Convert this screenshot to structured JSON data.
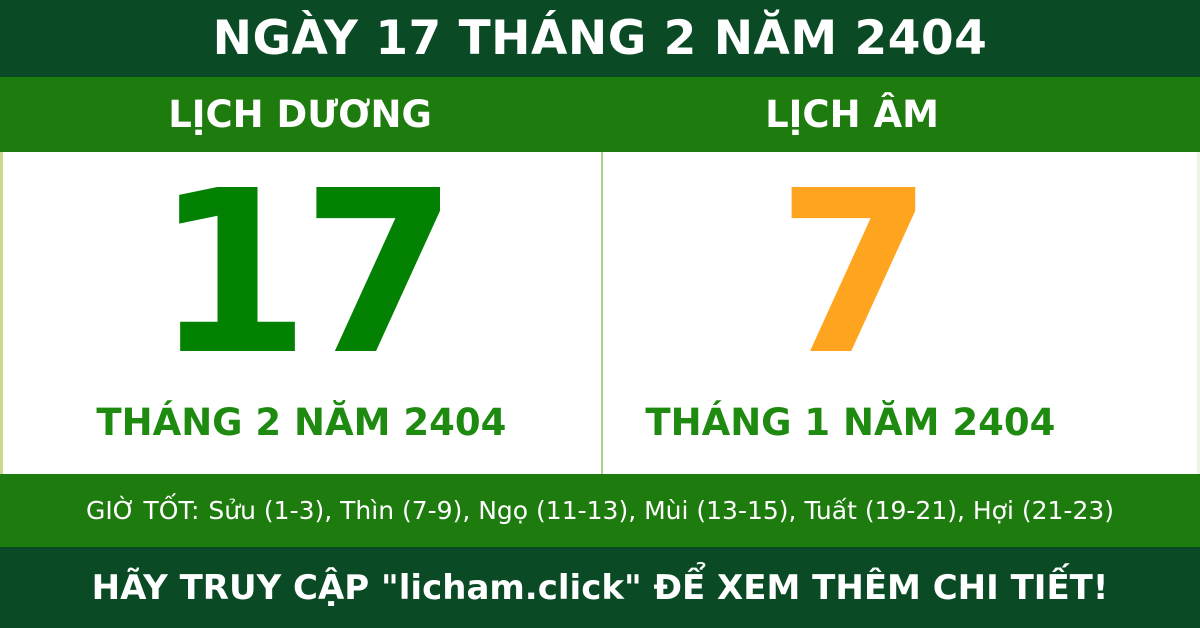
{
  "header": {
    "title": "NGÀY 17 THÁNG 2 NĂM 2404"
  },
  "solar": {
    "label": "LỊCH DƯƠNG",
    "day": "17",
    "month_year": "THÁNG 2 NĂM 2404"
  },
  "lunar": {
    "label": "LỊCH ÂM",
    "day": "7",
    "month_year": "THÁNG 1 NĂM 2404"
  },
  "good_hours": {
    "label": "GIỜ TỐT:",
    "hours": "Sửu (1-3), Thìn (7-9), Ngọ (11-13), Mùi (13-15), Tuất (19-21), Hợi (21-23)"
  },
  "footer": {
    "text": "HÃY TRUY CẬP \"licham.click\" ĐỂ XEM THÊM CHI TIẾT!"
  },
  "colors": {
    "dark_green_bar": "#0a4a25",
    "medium_green_bar": "#1e7b0e",
    "solar_day_green": "#028102",
    "lunar_day_orange": "#ffa41e",
    "month_text_green": "#1e8a10",
    "divider_light_green": "#a8d487",
    "panel_background": "#ffffff",
    "bar_text_white": "#ffffff"
  }
}
